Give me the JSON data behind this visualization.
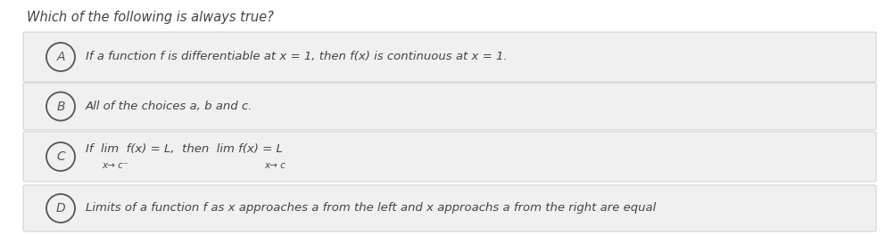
{
  "title": "Which of the following is always true?",
  "title_fontsize": 10.5,
  "title_style": "italic",
  "title_color": "#444444",
  "background_color": "#ffffff",
  "option_bg_color": "#f0f0f0",
  "option_border_color": "#c8c8c8",
  "circle_edge_color": "#555555",
  "text_color": "#444444",
  "options": [
    {
      "label": "A",
      "text": "If a function f is differentiable at x = 1, then f(x) is continuous at x = 1.",
      "has_subscript": false
    },
    {
      "label": "B",
      "text": "All of the choices a, b and c.",
      "has_subscript": false
    },
    {
      "label": "C",
      "text_line1": "If  lim  f(x) = L,  then  lim f(x) = L",
      "sub_left": "x→ c⁻",
      "sub_right": "x→ c",
      "has_subscript": true
    },
    {
      "label": "D",
      "text": "Limits of a function f as x approaches a from the left and x approachs a from the right are equal",
      "has_subscript": false
    }
  ],
  "figsize": [
    10.03,
    2.73
  ],
  "dpi": 100
}
